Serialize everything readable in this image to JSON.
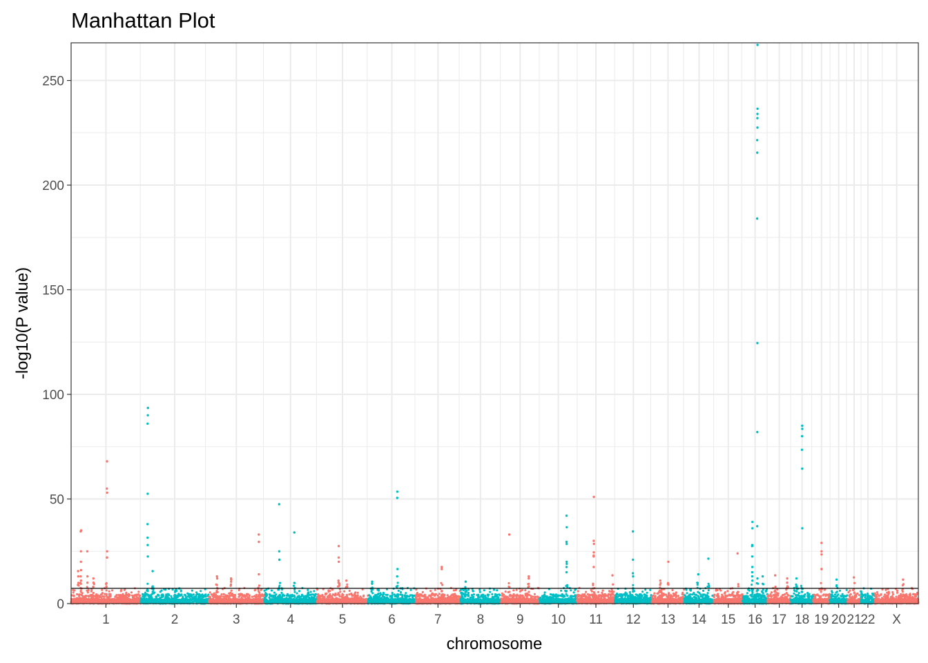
{
  "chart_data": {
    "type": "scatter",
    "subtype": "manhattan",
    "title": "Manhattan Plot",
    "xlabel": "chromosome",
    "ylabel": "-log10(P value)",
    "ylim": [
      0,
      268
    ],
    "yticks": [
      0,
      50,
      100,
      150,
      200,
      250
    ],
    "grid": true,
    "legend": "none",
    "threshold": 7.3,
    "colors": {
      "odd": "#F8766D",
      "even": "#00BFC4",
      "threshold": "#000000",
      "grid": "#EBEBEB"
    },
    "chromosomes": [
      {
        "label": "1",
        "start": 0,
        "end": 249
      },
      {
        "label": "2",
        "start": 249,
        "end": 492
      },
      {
        "label": "3",
        "start": 492,
        "end": 690
      },
      {
        "label": "4",
        "start": 690,
        "end": 880
      },
      {
        "label": "5",
        "start": 880,
        "end": 1062
      },
      {
        "label": "6",
        "start": 1062,
        "end": 1233
      },
      {
        "label": "7",
        "start": 1233,
        "end": 1392
      },
      {
        "label": "8",
        "start": 1392,
        "end": 1537
      },
      {
        "label": "9",
        "start": 1537,
        "end": 1676
      },
      {
        "label": "10",
        "start": 1676,
        "end": 1810
      },
      {
        "label": "11",
        "start": 1810,
        "end": 1945
      },
      {
        "label": "12",
        "start": 1945,
        "end": 2078
      },
      {
        "label": "13",
        "start": 2078,
        "end": 2193
      },
      {
        "label": "14",
        "start": 2193,
        "end": 2300
      },
      {
        "label": "15",
        "start": 2300,
        "end": 2402
      },
      {
        "label": "16",
        "start": 2402,
        "end": 2492
      },
      {
        "label": "17",
        "start": 2492,
        "end": 2575
      },
      {
        "label": "18",
        "start": 2575,
        "end": 2655
      },
      {
        "label": "19",
        "start": 2655,
        "end": 2714
      },
      {
        "label": "20",
        "start": 2714,
        "end": 2778
      },
      {
        "label": "21",
        "start": 2778,
        "end": 2825
      },
      {
        "label": "22",
        "start": 2825,
        "end": 2876
      },
      {
        "label": "X",
        "start": 2876,
        "end": 3031
      }
    ],
    "peaks": [
      {
        "chr": "1",
        "pos": 35,
        "values": [
          35,
          34.5,
          25,
          20,
          16,
          13,
          11
        ]
      },
      {
        "chr": "1",
        "pos": 58,
        "values": [
          25,
          13,
          10
        ]
      },
      {
        "chr": "1",
        "pos": 128,
        "values": [
          68,
          55,
          53,
          25,
          22,
          22
        ]
      },
      {
        "chr": "1",
        "pos": 25,
        "values": [
          15.5,
          13
        ]
      },
      {
        "chr": "1",
        "pos": 80,
        "values": [
          12,
          10
        ]
      },
      {
        "chr": "2",
        "pos": 25,
        "values": [
          93.5,
          90,
          86,
          52.5,
          38,
          31.5,
          28,
          22.5
        ]
      },
      {
        "chr": "2",
        "pos": 43,
        "values": [
          15.5
        ]
      },
      {
        "chr": "3",
        "pos": 30,
        "values": [
          13,
          12
        ]
      },
      {
        "chr": "3",
        "pos": 80,
        "values": [
          12,
          11.5,
          10.5
        ]
      },
      {
        "chr": "3",
        "pos": 180,
        "values": [
          33,
          29.5,
          14
        ]
      },
      {
        "chr": "4",
        "pos": 55,
        "values": [
          47.5,
          25,
          21,
          21
        ]
      },
      {
        "chr": "4",
        "pos": 108,
        "values": [
          34
        ]
      },
      {
        "chr": "5",
        "pos": 77,
        "values": [
          27.5,
          22,
          20,
          11,
          10
        ]
      },
      {
        "chr": "5",
        "pos": 105,
        "values": [
          11
        ]
      },
      {
        "chr": "6",
        "pos": 15,
        "values": [
          10.5,
          9.5
        ]
      },
      {
        "chr": "6",
        "pos": 105,
        "values": [
          53.5,
          50.5,
          16.5,
          13
        ]
      },
      {
        "chr": "7",
        "pos": 93,
        "values": [
          17.5,
          16.5
        ]
      },
      {
        "chr": "8",
        "pos": 20,
        "values": [
          10.5
        ]
      },
      {
        "chr": "9",
        "pos": 30,
        "values": [
          33
        ]
      },
      {
        "chr": "9",
        "pos": 100,
        "values": [
          13,
          12
        ]
      },
      {
        "chr": "10",
        "pos": 97,
        "values": [
          42,
          36.5,
          29.5,
          28.5,
          20,
          19,
          17.5,
          15
        ]
      },
      {
        "chr": "11",
        "pos": 60,
        "values": [
          51,
          30,
          28.5,
          24.5,
          23,
          22.5,
          17.5
        ]
      },
      {
        "chr": "11",
        "pos": 127,
        "values": [
          13.5
        ]
      },
      {
        "chr": "12",
        "pos": 65,
        "values": [
          34.5,
          21,
          14.5,
          13
        ]
      },
      {
        "chr": "13",
        "pos": 30,
        "values": [
          11,
          9
        ]
      },
      {
        "chr": "13",
        "pos": 58,
        "values": [
          20
        ]
      },
      {
        "chr": "14",
        "pos": 50,
        "values": [
          14
        ]
      },
      {
        "chr": "14",
        "pos": 87,
        "values": [
          21.5
        ]
      },
      {
        "chr": "15",
        "pos": 85,
        "values": [
          24
        ]
      },
      {
        "chr": "16",
        "pos": 35,
        "values": [
          39,
          36,
          28,
          27.5,
          22.5,
          17.5,
          15,
          13,
          11
        ]
      },
      {
        "chr": "16",
        "pos": 53,
        "values": [
          267,
          236.5,
          234,
          232,
          227.5,
          221.5,
          215.5,
          184,
          124.5,
          82,
          37,
          12
        ]
      },
      {
        "chr": "16",
        "pos": 72,
        "values": [
          13
        ]
      },
      {
        "chr": "17",
        "pos": 27,
        "values": [
          13.5
        ]
      },
      {
        "chr": "17",
        "pos": 70,
        "values": [
          12,
          10
        ]
      },
      {
        "chr": "18",
        "pos": 40,
        "values": [
          85,
          83.5,
          80,
          73.5,
          64.5,
          36
        ]
      },
      {
        "chr": "18",
        "pos": 20,
        "values": [
          12
        ]
      },
      {
        "chr": "19",
        "pos": 30,
        "values": [
          29,
          25,
          23.5,
          16.5,
          16.5
        ]
      },
      {
        "chr": "20",
        "pos": 25,
        "values": [
          11.5
        ]
      },
      {
        "chr": "21",
        "pos": 22,
        "values": [
          12.5
        ]
      },
      {
        "chr": "X",
        "pos": 100,
        "values": [
          11.5
        ]
      }
    ]
  }
}
